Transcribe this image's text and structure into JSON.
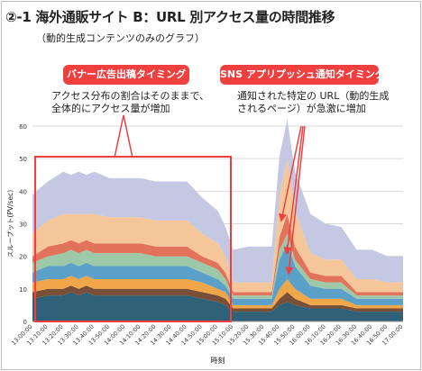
{
  "title": "②-1 海外通販サイト B：URL 別アクセス量の時間推移",
  "subtitle": "（動的生成コンテンツのみのグラフ）",
  "callouts": [
    {
      "label": "バナー広告出稿タイミング",
      "lines": [
        "アクセス分布の割合はそのままで、",
        "全体的にアクセス量が増加"
      ]
    },
    {
      "label": "SNS アプリプッシュ通知タイミング",
      "lines": [
        "通知された特定の URL（動的生成",
        "されるページ）が急激に増加"
      ]
    }
  ],
  "colors": {
    "accent": "#ef3f3f",
    "grid": "#d9d9d9",
    "base": "#2f6178"
  },
  "chart_data": {
    "type": "area",
    "stacked": true,
    "xlabel": "時刻",
    "ylabel": "スループット(PV/sec)",
    "ylim": [
      0,
      60
    ],
    "yticks": [
      0,
      10,
      20,
      30,
      40,
      50,
      60
    ],
    "grid": true,
    "x_ticks": [
      "13:00:00",
      "13:10:00",
      "13:20:00",
      "13:30:00",
      "13:40:00",
      "13:50:00",
      "14:00:00",
      "14:10:00",
      "14:20:00",
      "14:30:00",
      "14:40:00",
      "14:50:00",
      "15:00:00",
      "15:10:00",
      "15:20:00",
      "15:30:00",
      "15:40:00",
      "15:50:00",
      "16:00:00",
      "16:10:00",
      "16:20:00",
      "16:30:00",
      "16:40:00",
      "16:50:00",
      "17:00:00"
    ],
    "x": [
      "13:00",
      "13:10",
      "13:20",
      "13:25",
      "13:30",
      "13:35",
      "13:40",
      "13:50",
      "14:00",
      "14:10",
      "14:20",
      "14:30",
      "14:40",
      "14:50",
      "15:00",
      "15:05",
      "15:10",
      "15:20",
      "15:30",
      "15:35",
      "15:40",
      "15:45",
      "15:50",
      "16:00",
      "16:10",
      "16:20",
      "16:30",
      "16:40",
      "16:50",
      "17:00"
    ],
    "series": [
      {
        "color": "#2f6178",
        "values": [
          7,
          8,
          8,
          9,
          8,
          9,
          8,
          8,
          8,
          8,
          8,
          8,
          8,
          7,
          6,
          5,
          3,
          3,
          3,
          3,
          5,
          6,
          5,
          4,
          4,
          4,
          3,
          3,
          3,
          3
        ]
      },
      {
        "color": "#7a4f37",
        "values": [
          2,
          2,
          2,
          2,
          2,
          2,
          2,
          2,
          2,
          2,
          2,
          2,
          2,
          2,
          2,
          2,
          1,
          1,
          1,
          1,
          2,
          3,
          2,
          1,
          1,
          1,
          1,
          1,
          1,
          1
        ]
      },
      {
        "color": "#f2a64a",
        "values": [
          3,
          3,
          3,
          3,
          3,
          3,
          3,
          3,
          3,
          3,
          3,
          3,
          3,
          3,
          2,
          2,
          1,
          1,
          1,
          1,
          3,
          4,
          3,
          2,
          2,
          2,
          1,
          1,
          1,
          1
        ]
      },
      {
        "color": "#5aa0c8",
        "values": [
          3,
          4,
          4,
          4,
          4,
          4,
          4,
          4,
          4,
          4,
          4,
          4,
          4,
          3,
          3,
          2,
          2,
          2,
          2,
          2,
          9,
          11,
          7,
          4,
          3,
          3,
          2,
          2,
          2,
          2
        ]
      },
      {
        "color": "#9ec9a8",
        "values": [
          3,
          3,
          4,
          4,
          4,
          4,
          4,
          4,
          4,
          4,
          3,
          3,
          3,
          3,
          3,
          2,
          1,
          1,
          1,
          1,
          3,
          3,
          2,
          2,
          2,
          2,
          1,
          1,
          1,
          1
        ]
      },
      {
        "color": "#e0735a",
        "values": [
          2,
          3,
          3,
          3,
          3,
          3,
          3,
          3,
          3,
          3,
          3,
          3,
          3,
          2,
          2,
          2,
          1,
          1,
          1,
          1,
          4,
          6,
          4,
          2,
          2,
          2,
          1,
          1,
          1,
          1
        ]
      },
      {
        "color": "#f5c69a",
        "values": [
          7,
          8,
          9,
          8,
          9,
          8,
          9,
          8,
          8,
          8,
          8,
          8,
          8,
          7,
          6,
          5,
          3,
          3,
          3,
          3,
          13,
          17,
          11,
          6,
          5,
          5,
          4,
          4,
          3,
          3
        ]
      },
      {
        "color": "#c4c8e3",
        "values": [
          12,
          12,
          13,
          12,
          13,
          12,
          13,
          12,
          12,
          12,
          12,
          12,
          12,
          11,
          10,
          9,
          10,
          11,
          11,
          11,
          12,
          12,
          12,
          12,
          11,
          10,
          9,
          9,
          8,
          8
        ]
      }
    ]
  }
}
